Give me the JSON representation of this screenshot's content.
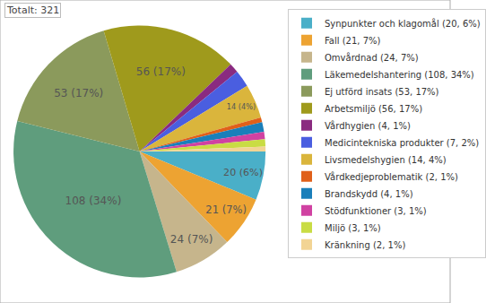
{
  "chart_data": {
    "type": "pie",
    "title": "Totalt: 321",
    "categories": [
      "Synpunkter och klagomål (20, 6%)",
      "Fall (21, 7%)",
      "Omvårdnad (24, 7%)",
      "Läkemedelshantering (108, 34%)",
      "Ej utförd insats (53, 17%)",
      "Arbetsmiljö (56, 17%)",
      "Vårdhygien (4, 1%)",
      "Medicintekniska produkter (7, 2%)",
      "Livsmedelshygien (14, 4%)",
      "Vårdkedjeproblematik (2, 1%)",
      "Brandskydd (4, 1%)",
      "Stödfunktioner (3, 1%)",
      "Miljö (3, 1%)",
      "Kränkning (2, 1%)"
    ],
    "values": [
      20,
      21,
      24,
      108,
      53,
      56,
      4,
      7,
      14,
      2,
      4,
      3,
      3,
      2
    ],
    "value_labels": [
      "20 (6%)",
      "21 (7%)",
      "24 (7%)",
      "108 (34%)",
      "53 (17%)",
      "56 (17%)",
      null,
      null,
      "14 (4%)",
      null,
      null,
      null,
      null,
      null
    ],
    "colors": [
      "#4aafc8",
      "#eda332",
      "#c6b58c",
      "#5f9d7d",
      "#8b9a5c",
      "#9f9a1c",
      "#8a2b80",
      "#4a5ee0",
      "#dab53c",
      "#e0601a",
      "#1a7fba",
      "#d042a2",
      "#c9dc44",
      "#f2d494"
    ],
    "legend": "right"
  }
}
